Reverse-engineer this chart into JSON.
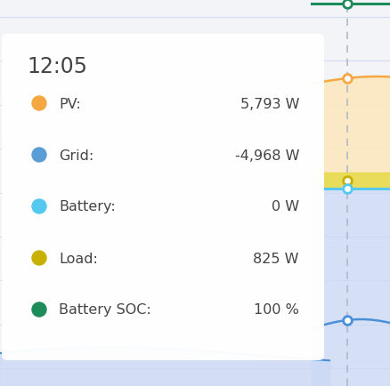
{
  "title_time": "12:05",
  "entries": [
    {
      "label": "PV:",
      "value": "5,793 W",
      "color": "#f5a742"
    },
    {
      "label": "Grid:",
      "value": "-4,968 W",
      "color": "#5a9dd5"
    },
    {
      "label": "Battery:",
      "value": "0 W",
      "color": "#55c8f0"
    },
    {
      "label": "Load:",
      "value": "825 W",
      "color": "#c8b000"
    },
    {
      "label": "Battery SOC:",
      "value": "100 %",
      "color": "#1e8c5a"
    }
  ],
  "bg_color": "#f2f4f8",
  "chart_bg": "#eef2fb",
  "tooltip_bg": "#ffffff",
  "pv_fill": "#fde8c0",
  "grid_fill": "#ccd9f5",
  "load_fill": "#e8d840",
  "battery_line_color": "#55c8f0",
  "grid_line_color": "#4a90d9",
  "pv_line_color": "#f5a742",
  "soc_line_color": "#1e8c5a",
  "load_line_color": "#c8b000",
  "dashed_color": "#b0b8c8",
  "grid_line_color2": "#d0daf0",
  "figsize": [
    4.38,
    4.35
  ],
  "dpi": 100
}
